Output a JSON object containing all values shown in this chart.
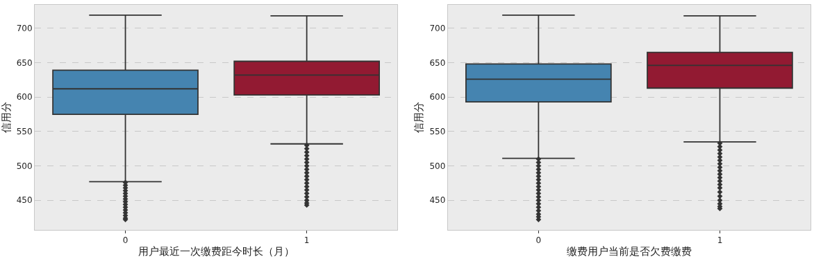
{
  "chart_data": [
    {
      "type": "box",
      "xlabel": "用户最近一次缴费距今时长（月）",
      "ylabel": "信用分",
      "categories": [
        "0",
        "1"
      ],
      "colors": [
        "#4584b0",
        "#921a32"
      ],
      "ylim": [
        407,
        734
      ],
      "yticks": [
        450,
        500,
        550,
        600,
        650,
        700
      ],
      "grid": "y",
      "marker": "diamond",
      "boxes": [
        {
          "low": 477,
          "q1": 575,
          "median": 612,
          "q3": 639,
          "high": 719,
          "outliers": [
            476,
            472,
            468,
            464,
            460,
            456,
            452,
            448,
            444,
            440,
            436,
            432,
            428,
            424,
            422
          ]
        },
        {
          "low": 532,
          "q1": 603,
          "median": 632,
          "q3": 652,
          "high": 718,
          "outliers": [
            530,
            525,
            520,
            515,
            510,
            505,
            500,
            495,
            490,
            485,
            480,
            475,
            470,
            465,
            460,
            455,
            450,
            446,
            443
          ]
        }
      ]
    },
    {
      "type": "box",
      "xlabel": "缴费用户当前是否欠费缴费",
      "ylabel": "信用分",
      "categories": [
        "0",
        "1"
      ],
      "colors": [
        "#4584b0",
        "#921a32"
      ],
      "ylim": [
        407,
        734
      ],
      "yticks": [
        450,
        500,
        550,
        600,
        650,
        700
      ],
      "grid": "y",
      "marker": "diamond",
      "boxes": [
        {
          "low": 511,
          "q1": 593,
          "median": 626,
          "q3": 648,
          "high": 719,
          "outliers": [
            510,
            505,
            500,
            495,
            490,
            485,
            480,
            475,
            470,
            465,
            460,
            455,
            450,
            445,
            440,
            435,
            430,
            426,
            422
          ]
        },
        {
          "low": 535,
          "q1": 613,
          "median": 646,
          "q3": 665,
          "high": 718,
          "outliers": [
            533,
            528,
            523,
            518,
            513,
            508,
            503,
            498,
            493,
            488,
            483,
            478,
            473,
            468,
            462,
            456,
            450,
            445,
            441,
            438
          ]
        }
      ]
    }
  ]
}
